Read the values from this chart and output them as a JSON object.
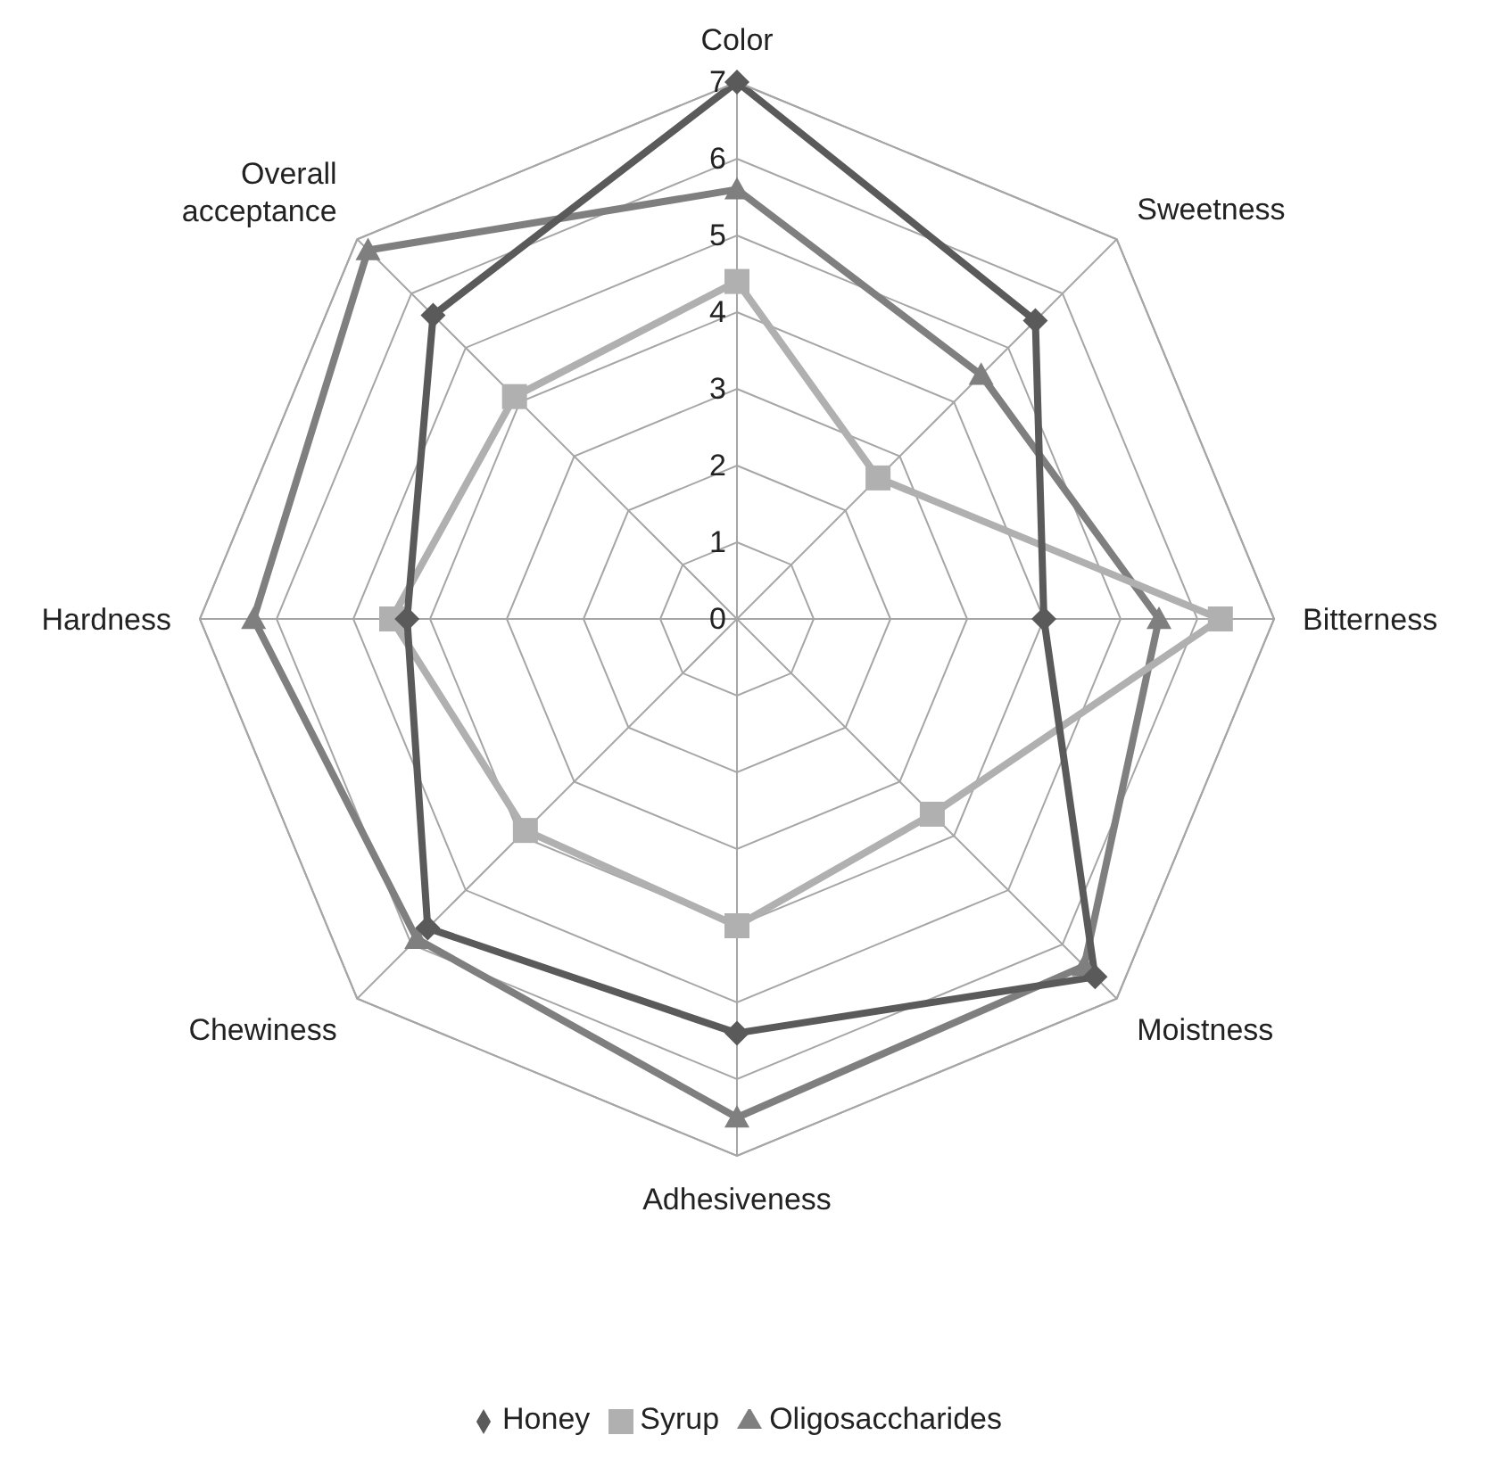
{
  "chart_data": {
    "type": "radar",
    "categories": [
      "Color",
      "Sweetness",
      "Bitterness",
      "Moistness",
      "Adhesiveness",
      "Chewiness",
      "Hardness",
      "Overall acceptance"
    ],
    "ylim": [
      0,
      7
    ],
    "yticks": [
      0,
      1,
      2,
      3,
      4,
      5,
      6,
      7
    ],
    "grid": true,
    "legend": "bottom",
    "series": [
      {
        "name": "Honey",
        "color": "#5a5a5a",
        "marker": "diamond",
        "values": [
          7,
          5.5,
          4.0,
          6.6,
          5.4,
          5.7,
          4.3,
          5.6
        ]
      },
      {
        "name": "Syrup",
        "color": "#b0b0b0",
        "marker": "square",
        "values": [
          4.4,
          2.6,
          6.3,
          3.6,
          4.0,
          3.9,
          4.5,
          4.1
        ]
      },
      {
        "name": "Oligosaccharides",
        "color": "#7f7f7f",
        "marker": "triangle",
        "values": [
          5.6,
          4.5,
          5.5,
          6.4,
          6.5,
          5.9,
          6.3,
          6.8
        ]
      }
    ]
  }
}
